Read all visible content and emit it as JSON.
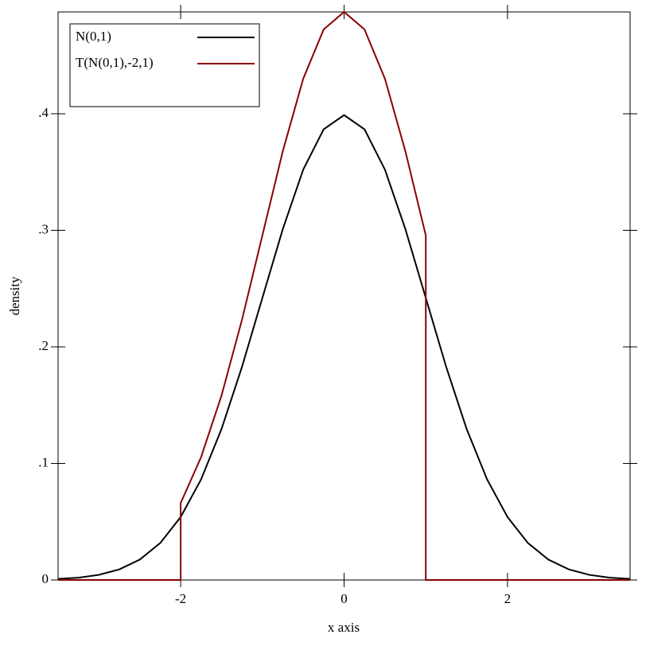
{
  "chart_data": {
    "type": "line",
    "xlabel": "x axis",
    "ylabel": "density",
    "x": [
      -3.5,
      -3.25,
      -3,
      -2.75,
      -2.5,
      -2.25,
      -2,
      -2,
      -1.75,
      -1.5,
      -1.25,
      -1,
      -0.75,
      -0.5,
      -0.25,
      0,
      0.25,
      0.5,
      0.75,
      1,
      1,
      1.25,
      1.5,
      1.75,
      2,
      2.25,
      2.5,
      2.75,
      3,
      3.25,
      3.5
    ],
    "series": [
      {
        "name": "N(0,1)",
        "color": "#000000",
        "values": [
          0.0009,
          0.002,
          0.0044,
          0.0091,
          0.0175,
          0.0317,
          0.054,
          0.054,
          0.0863,
          0.1295,
          0.1827,
          0.242,
          0.3011,
          0.3521,
          0.3867,
          0.3989,
          0.3867,
          0.3521,
          0.3011,
          0.242,
          0.242,
          0.1827,
          0.1295,
          0.0863,
          0.054,
          0.0317,
          0.0175,
          0.0091,
          0.0044,
          0.002,
          0.0009
        ]
      },
      {
        "name": "T(N(0,1),-2,1)",
        "color": "#8b0000",
        "values": [
          0,
          0,
          0,
          0,
          0,
          0,
          0,
          0.066,
          0.1054,
          0.1582,
          0.2231,
          0.2956,
          0.3679,
          0.4301,
          0.4724,
          0.4874,
          0.4724,
          0.4301,
          0.3679,
          0.2956,
          0,
          0,
          0,
          0,
          0,
          0,
          0,
          0,
          0,
          0,
          0
        ]
      }
    ],
    "xlim": [
      -3.5,
      3.5
    ],
    "ylim": [
      0,
      0.4874
    ],
    "xticks": [
      -2,
      0,
      2
    ],
    "yticks": [
      0,
      {
        "value": 0.1,
        "label": ".1"
      },
      {
        "value": 0.2,
        "label": ".2"
      },
      {
        "value": 0.3,
        "label": ".3"
      },
      {
        "value": 0.4,
        "label": ".4"
      }
    ],
    "grid": false,
    "legend": "top-left"
  }
}
